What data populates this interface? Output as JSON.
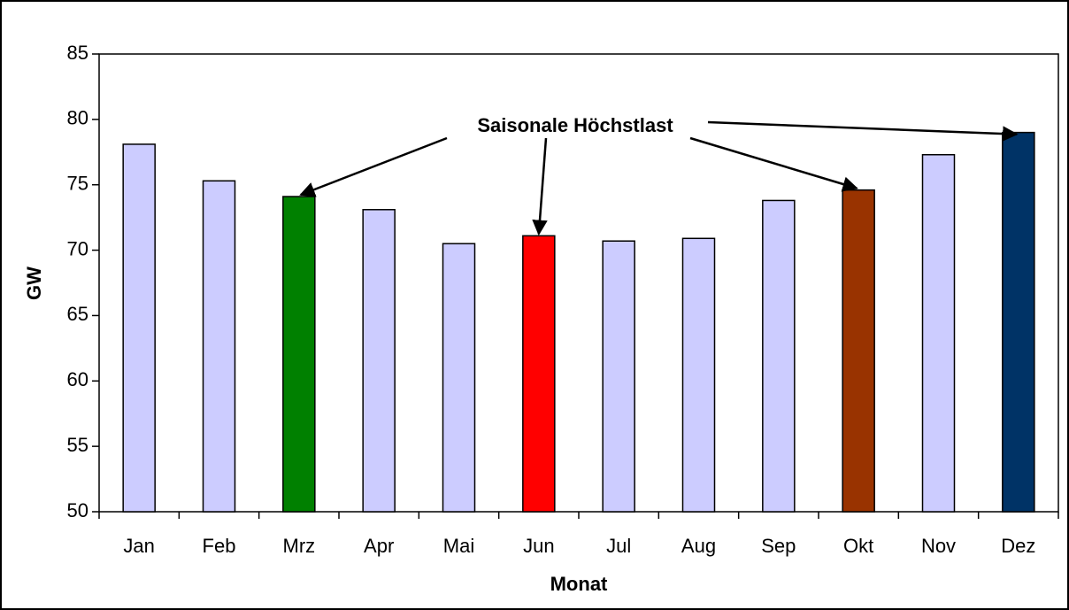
{
  "chart_data": {
    "type": "bar",
    "categories": [
      "Jan",
      "Feb",
      "Mrz",
      "Apr",
      "Mai",
      "Jun",
      "Jul",
      "Aug",
      "Sep",
      "Okt",
      "Nov",
      "Dez"
    ],
    "values": [
      78.1,
      75.3,
      74.1,
      73.1,
      70.5,
      71.1,
      70.7,
      70.9,
      73.8,
      74.6,
      77.3,
      79.0
    ],
    "colors": [
      "#ccccff",
      "#ccccff",
      "#008000",
      "#ccccff",
      "#ccccff",
      "#ff0000",
      "#ccccff",
      "#ccccff",
      "#ccccff",
      "#993300",
      "#ccccff",
      "#003366"
    ],
    "xlabel": "Monat",
    "ylabel": "GW",
    "ylim": [
      50,
      85
    ],
    "yticks": [
      50,
      55,
      60,
      65,
      70,
      75,
      80,
      85
    ],
    "grid": false,
    "annotation": {
      "text": "Saisonale Höchstlast",
      "targets": [
        2,
        5,
        9,
        11
      ]
    }
  }
}
